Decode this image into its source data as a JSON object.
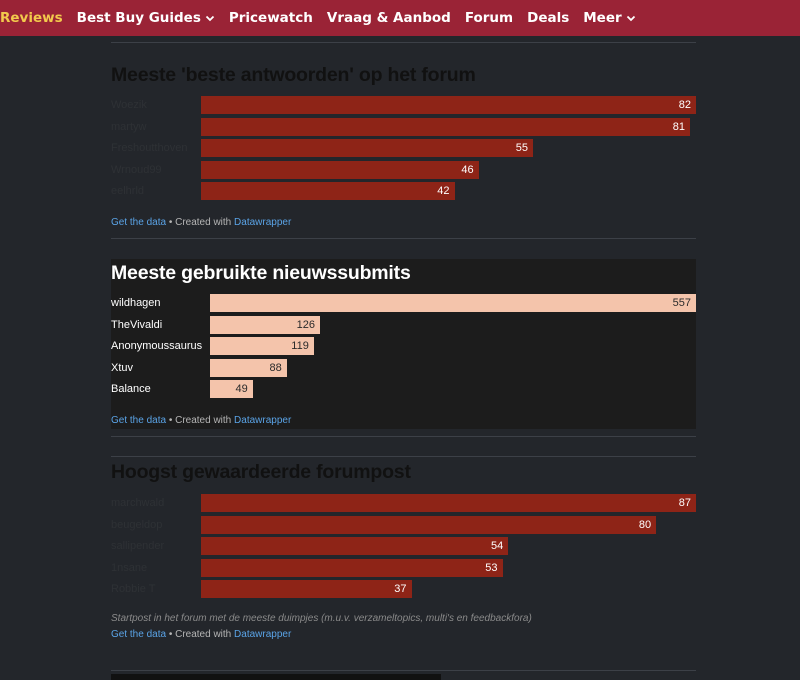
{
  "nav": {
    "items": [
      {
        "label": "Reviews",
        "dropdown": false
      },
      {
        "label": "Best Buy Guides",
        "dropdown": true
      },
      {
        "label": "Pricewatch",
        "dropdown": false
      },
      {
        "label": "Vraag & Aanbod",
        "dropdown": false
      },
      {
        "label": "Forum",
        "dropdown": false
      },
      {
        "label": "Deals",
        "dropdown": false
      },
      {
        "label": "Meer",
        "dropdown": true
      }
    ]
  },
  "footer": {
    "get_data": "Get the data",
    "created_with": " • Created with ",
    "datawrapper": "Datawrapper"
  },
  "chart_data": [
    {
      "type": "bar",
      "orientation": "horizontal",
      "title": "Meeste 'beste antwoorden' op het forum",
      "categories": [
        "Woezik",
        "martyw",
        "Freshoutthoven",
        "Wrnoud99",
        "eelhrld"
      ],
      "values": [
        82,
        81,
        55,
        46,
        42
      ],
      "xlim": [
        0,
        82
      ],
      "bar_color": "#8e2417",
      "label_style": "faint"
    },
    {
      "type": "bar",
      "orientation": "horizontal",
      "title": "Meeste gebruikte nieuwssubmits",
      "categories": [
        "wildhagen",
        "TheVivaldi",
        "Anonymoussaurus",
        "Xtuv",
        "Balance"
      ],
      "values": [
        557,
        126,
        119,
        88,
        49
      ],
      "xlim": [
        0,
        557
      ],
      "bar_color": "#f4c4ab",
      "label_style": "bright"
    },
    {
      "type": "bar",
      "orientation": "horizontal",
      "title": "Hoogst gewaardeerde forumpost",
      "categories": [
        "marchwald",
        "beugeldop",
        "sallipender",
        "1nsane",
        "Robbie T"
      ],
      "values": [
        87,
        80,
        54,
        53,
        37
      ],
      "xlim": [
        0,
        87
      ],
      "bar_color": "#8e2417",
      "label_style": "faint",
      "note": "Startpost in het forum met de meeste duimpjes (m.u.v. verzameltopics, multi's en feedbackfora)"
    }
  ]
}
